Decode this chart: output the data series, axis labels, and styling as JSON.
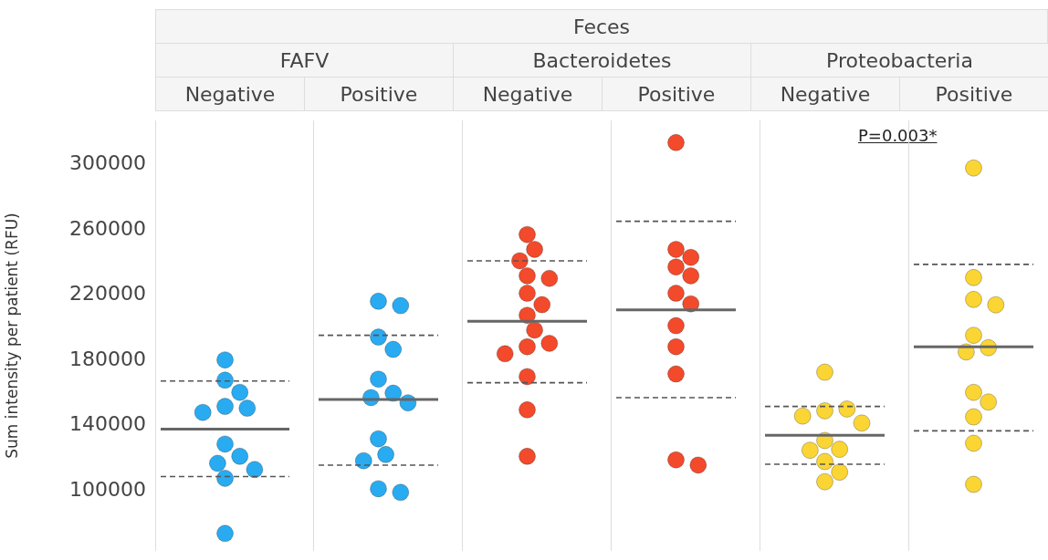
{
  "chart_data": [
    {
      "type": "other",
      "title": "Feces"
    },
    {
      "type": "scatter",
      "title": "FAFV",
      "categories": [
        "Negative"
      ],
      "ylabel": "Sum intensity per patient (RFU)",
      "ylim": [
        63000,
        327000
      ],
      "yticks": [
        100000,
        140000,
        180000,
        220000,
        260000,
        300000
      ],
      "grid": false,
      "marker": "circle",
      "series": [
        {
          "color": "#29abf2",
          "x": [
            "Negative",
            "Negative",
            "Negative",
            "Negative",
            "Negative",
            "Negative",
            "Negative",
            "Negative",
            "Negative",
            "Negative",
            "Negative",
            "Negative"
          ],
          "values": [
            180100,
            167700,
            160200,
            151600,
            150500,
            147900,
            128500,
            121000,
            116700,
            112900,
            107500,
            73700
          ]
        }
      ],
      "ref_lines": [
        {
          "axis": "y",
          "value": 137600,
          "color": "#666666",
          "line_style": "solid"
        },
        {
          "axis": "y",
          "value": 167200,
          "color": "#555555",
          "line_style": "dashed"
        },
        {
          "axis": "y",
          "value": 108600,
          "color": "#555555",
          "line_style": "dashed"
        }
      ]
    },
    {
      "type": "scatter",
      "categories": [
        "Positive"
      ],
      "ylim": [
        63000,
        327000
      ],
      "yticks": [
        100000,
        140000,
        180000,
        220000,
        260000,
        300000
      ],
      "tick_labels": "x",
      "grid": false,
      "marker": "circle",
      "series": [
        {
          "color": "#29abf2",
          "x": [
            "Positive",
            "Positive",
            "Positive",
            "Positive",
            "Positive",
            "Positive",
            "Positive",
            "Positive",
            "Positive",
            "Positive",
            "Positive",
            "Positive",
            "Positive"
          ],
          "values": [
            216100,
            213400,
            194100,
            186600,
            168300,
            159700,
            157000,
            153800,
            131700,
            122100,
            118300,
            101100,
            98900
          ]
        }
      ],
      "ref_lines": [
        {
          "axis": "y",
          "value": 155900,
          "color": "#666666",
          "line_style": "solid"
        },
        {
          "axis": "y",
          "value": 195200,
          "color": "#555555",
          "line_style": "dashed"
        },
        {
          "axis": "y",
          "value": 115600,
          "color": "#555555",
          "line_style": "dashed"
        }
      ]
    },
    {
      "type": "scatter",
      "title": "Bacteroidetes",
      "categories": [
        "Negative"
      ],
      "ylim": [
        63000,
        327000
      ],
      "yticks": [
        100000,
        140000,
        180000,
        220000,
        260000,
        300000
      ],
      "tick_labels": "x",
      "grid": false,
      "marker": "circle",
      "series": [
        {
          "color": "#f34a2b",
          "x": [
            "Negative",
            "Negative",
            "Negative",
            "Negative",
            "Negative",
            "Negative",
            "Negative",
            "Negative",
            "Negative",
            "Negative",
            "Negative",
            "Negative",
            "Negative",
            "Negative",
            "Negative"
          ],
          "values": [
            257000,
            247900,
            240900,
            231700,
            230100,
            221000,
            214000,
            207500,
            198400,
            188200,
            190300,
            183900,
            169900,
            149500,
            121000
          ]
        }
      ],
      "ref_lines": [
        {
          "axis": "y",
          "value": 203800,
          "color": "#666666",
          "line_style": "solid"
        },
        {
          "axis": "y",
          "value": 240900,
          "color": "#555555",
          "line_style": "dashed"
        },
        {
          "axis": "y",
          "value": 166100,
          "color": "#555555",
          "line_style": "dashed"
        }
      ]
    },
    {
      "type": "scatter",
      "categories": [
        "Positive"
      ],
      "ylim": [
        63000,
        327000
      ],
      "yticks": [
        100000,
        140000,
        180000,
        220000,
        260000,
        300000
      ],
      "tick_labels": "x",
      "grid": false,
      "marker": "circle",
      "series": [
        {
          "color": "#f34a2b",
          "x": [
            "Positive",
            "Positive",
            "Positive",
            "Positive",
            "Positive",
            "Positive",
            "Positive",
            "Positive",
            "Positive",
            "Positive",
            "Positive",
            "Positive"
          ],
          "values": [
            313400,
            247900,
            243000,
            237100,
            231700,
            221000,
            214500,
            201100,
            188200,
            171500,
            118800,
            115600
          ]
        }
      ],
      "ref_lines": [
        {
          "axis": "y",
          "value": 210800,
          "color": "#666666",
          "line_style": "solid"
        },
        {
          "axis": "y",
          "value": 265100,
          "color": "#555555",
          "line_style": "dashed"
        },
        {
          "axis": "y",
          "value": 157000,
          "color": "#555555",
          "line_style": "dashed"
        }
      ]
    },
    {
      "type": "scatter",
      "title": "Proteobacteria",
      "categories": [
        "Negative"
      ],
      "ylim": [
        63000,
        327000
      ],
      "yticks": [
        100000,
        140000,
        180000,
        220000,
        260000,
        300000
      ],
      "tick_labels": "x",
      "grid": false,
      "marker": "circle",
      "annotations": [
        "P=0.003*"
      ],
      "series": [
        {
          "color": "#fbd534",
          "x": [
            "Negative",
            "Negative",
            "Negative",
            "Negative",
            "Negative",
            "Negative",
            "Negative",
            "Negative",
            "Negative",
            "Negative",
            "Negative"
          ],
          "values": [
            172600,
            148900,
            150000,
            145700,
            141400,
            130700,
            125300,
            124700,
            117800,
            111300,
            105400
          ]
        }
      ],
      "ref_lines": [
        {
          "axis": "y",
          "value": 133900,
          "color": "#666666",
          "line_style": "solid"
        },
        {
          "axis": "y",
          "value": 151600,
          "color": "#555555",
          "line_style": "dashed"
        },
        {
          "axis": "y",
          "value": 116100,
          "color": "#555555",
          "line_style": "dashed"
        }
      ]
    },
    {
      "type": "scatter",
      "categories": [
        "Positive"
      ],
      "ylim": [
        63000,
        327000
      ],
      "yticks": [
        100000,
        140000,
        180000,
        220000,
        260000,
        300000
      ],
      "tick_labels": "x",
      "grid": false,
      "marker": "circle",
      "series": [
        {
          "color": "#fbd534",
          "x": [
            "Positive",
            "Positive",
            "Positive",
            "Positive",
            "Positive",
            "Positive",
            "Positive",
            "Positive",
            "Positive",
            "Positive",
            "Positive",
            "Positive"
          ],
          "values": [
            297800,
            230600,
            217200,
            213900,
            195200,
            187600,
            185000,
            160200,
            154300,
            145200,
            129000,
            103800
          ]
        }
      ],
      "ref_lines": [
        {
          "axis": "y",
          "value": 188200,
          "color": "#666666",
          "line_style": "solid"
        },
        {
          "axis": "y",
          "value": 238700,
          "color": "#555555",
          "line_style": "dashed"
        },
        {
          "axis": "y",
          "value": 136600,
          "color": "#555555",
          "line_style": "dashed"
        }
      ]
    }
  ]
}
